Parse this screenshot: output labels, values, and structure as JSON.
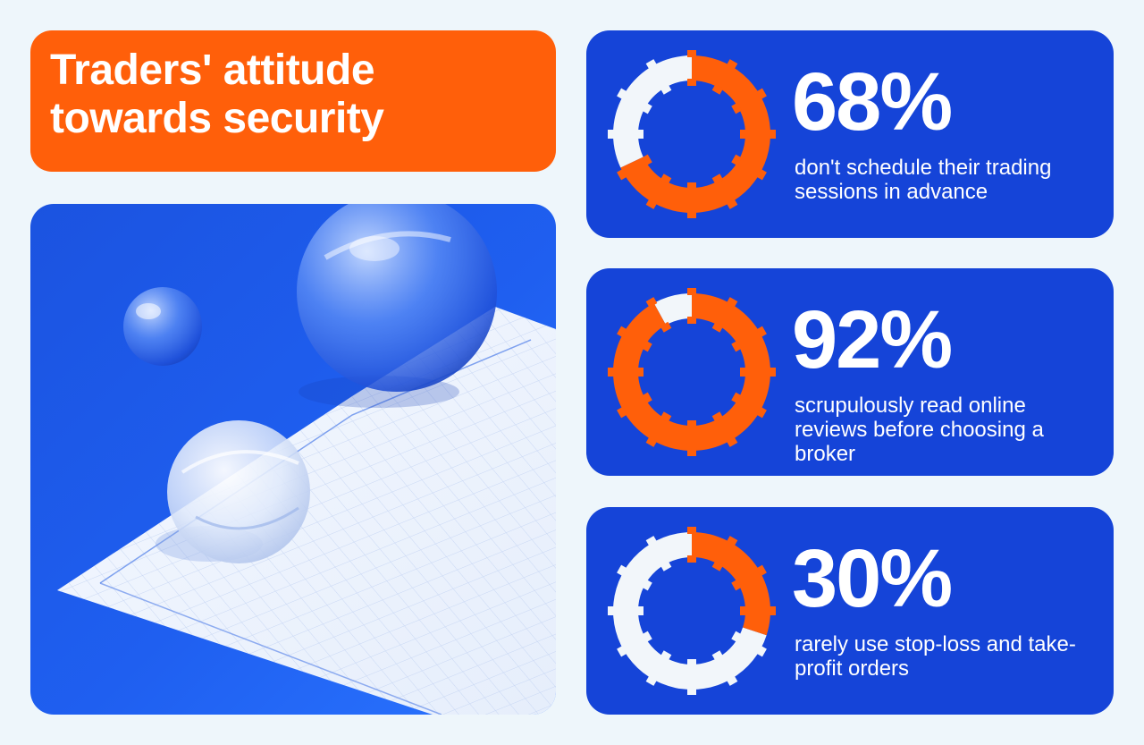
{
  "title": {
    "line1": "Traders' attitude",
    "line2": "towards security"
  },
  "colors": {
    "accent": "#ff5f0a",
    "card": "#1544d8",
    "ring_remainder": "#f2f6fa",
    "background": "#eef6fb"
  },
  "chart_data": [
    {
      "type": "pie",
      "value": 68,
      "label": "68%",
      "description": "don't schedule their trading sessions in advance"
    },
    {
      "type": "pie",
      "value": 92,
      "label": "92%",
      "description": "scrupulously read online reviews before choosing a broker"
    },
    {
      "type": "pie",
      "value": 30,
      "label": "30%",
      "description": "rarely use stop-loss and take-profit orders"
    }
  ]
}
